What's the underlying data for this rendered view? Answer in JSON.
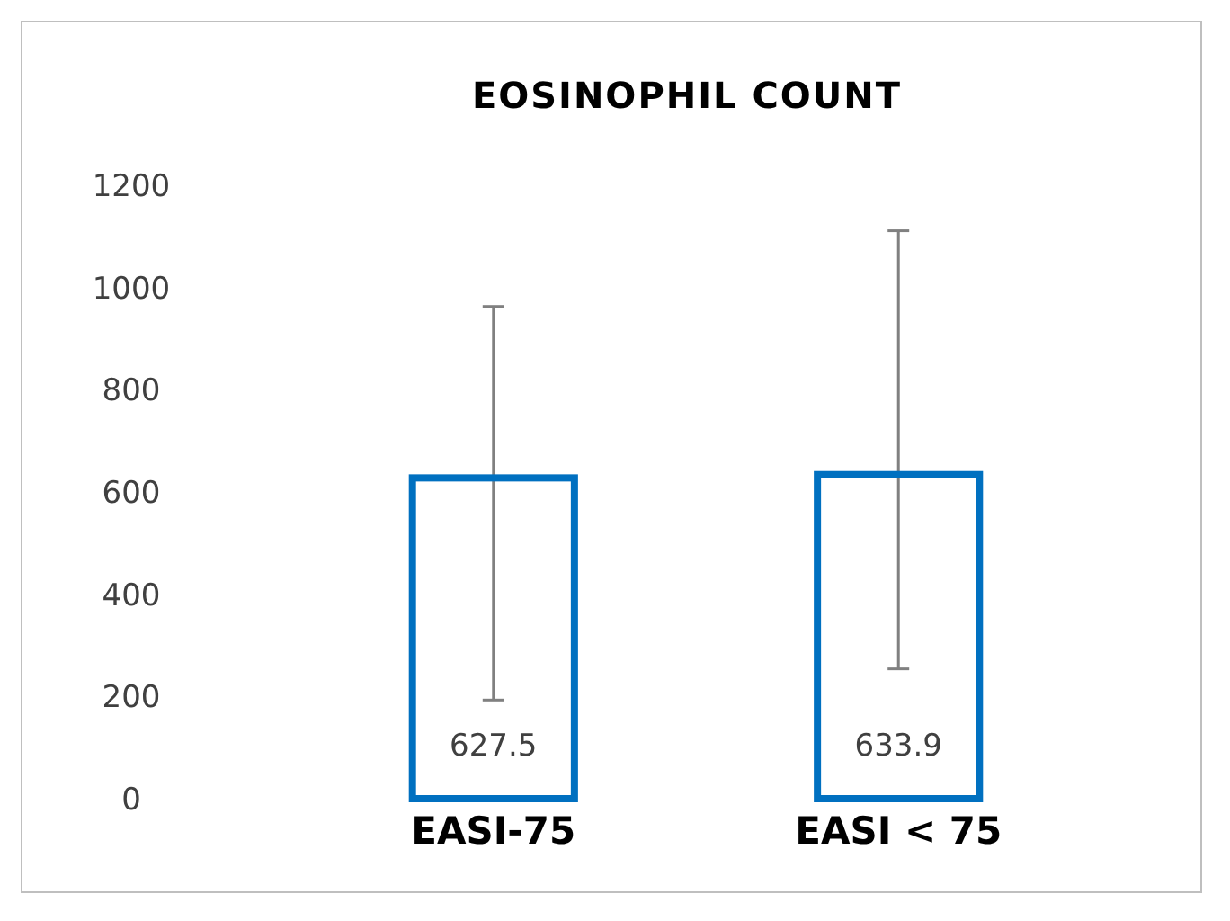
{
  "chart_data": {
    "type": "bar",
    "title": "EOSINOPHIL COUNT",
    "categories": [
      "EASI-75",
      "EASI < 75"
    ],
    "values": [
      627.5,
      633.9
    ],
    "color": "#0070c0",
    "errors": [
      [
        193,
        963
      ],
      [
        254,
        1111
      ]
    ],
    "ylim": [
      0,
      1200
    ],
    "yticks": [
      0,
      200,
      400,
      600,
      800,
      1000,
      1200
    ],
    "grid": false,
    "data_labels": true
  }
}
